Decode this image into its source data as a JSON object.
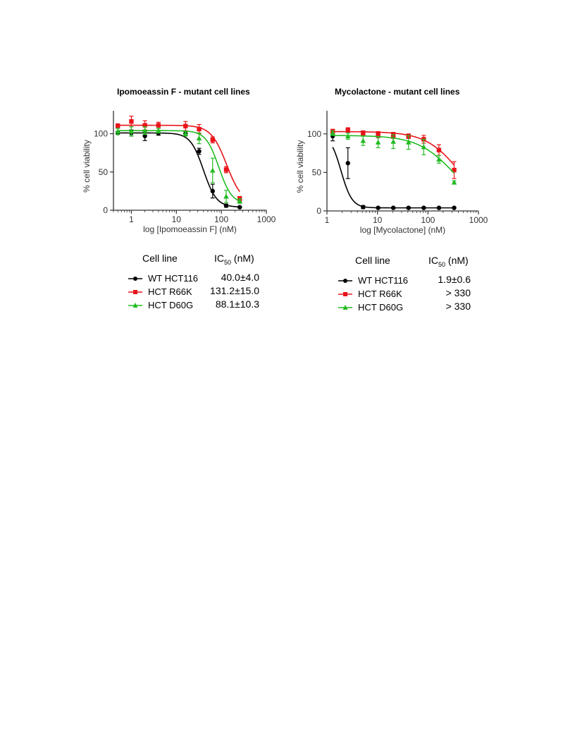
{
  "chart_data": [
    {
      "type": "scatter",
      "title": "Ipomoeassin F - mutant cell lines",
      "xlabel": "log [Ipomoeassin F] (nM)",
      "ylabel": "% cell viability",
      "xscale": "log",
      "xlim": [
        0.4,
        1000
      ],
      "ylim": [
        0,
        130
      ],
      "xticks": [
        1,
        10,
        100,
        1000
      ],
      "xtick_labels": [
        "1",
        "10",
        "100",
        "1000"
      ],
      "yticks": [
        0,
        50,
        100
      ],
      "ytick_labels": [
        "0",
        "50",
        "100"
      ],
      "grid": false,
      "series": [
        {
          "name": "WT HCT116",
          "color": "#000000",
          "marker": "circle",
          "x": [
            0.5,
            1,
            2,
            4,
            16,
            32,
            64,
            128,
            256
          ],
          "y": [
            101,
            101,
            97,
            101,
            100,
            77,
            25,
            6,
            4
          ],
          "err": [
            2,
            4,
            6,
            3,
            3,
            4,
            9,
            2,
            1
          ],
          "fit": {
            "top": 101,
            "bottom": 4,
            "ic50": 40.0,
            "hill": -3.0
          }
        },
        {
          "name": "HCT R66K",
          "color": "#e8141a",
          "marker": "square",
          "x": [
            0.5,
            1,
            2,
            4,
            16,
            32,
            64,
            128,
            256
          ],
          "y": [
            110,
            116,
            111,
            111,
            110,
            106,
            92,
            53,
            15
          ],
          "err": [
            3,
            7,
            6,
            4,
            6,
            6,
            4,
            4,
            3
          ],
          "fit": {
            "top": 111,
            "bottom": 8,
            "ic50": 131.2,
            "hill": -2.5
          }
        },
        {
          "name": "HCT D60G",
          "color": "#22bb22",
          "marker": "triangle",
          "x": [
            0.5,
            1,
            2,
            4,
            16,
            32,
            64,
            128,
            256
          ],
          "y": [
            103,
            103,
            104,
            104,
            100,
            94,
            52,
            18,
            12
          ],
          "err": [
            4,
            6,
            5,
            3,
            3,
            7,
            16,
            8,
            3
          ],
          "fit": {
            "top": 104,
            "bottom": 8,
            "ic50": 88.1,
            "hill": -3.0
          }
        }
      ],
      "legend": {
        "header_name": "Cell line",
        "header_value": "IC",
        "header_value_sub": "50",
        "header_value_unit": " (nM)",
        "rows": [
          {
            "name": "WT HCT116",
            "value": "40.0±4.0"
          },
          {
            "name": "HCT R66K",
            "value": "131.2±15.0"
          },
          {
            "name": "HCT D60G",
            "value": "88.1±10.3"
          }
        ]
      }
    },
    {
      "type": "scatter",
      "title": "Mycolactone - mutant cell lines",
      "xlabel": "log [Mycolactone] (nM)",
      "ylabel": "% cell viability",
      "xscale": "log",
      "xlim": [
        1,
        1000
      ],
      "ylim": [
        0,
        130
      ],
      "xticks": [
        1,
        10,
        100,
        1000
      ],
      "xtick_labels": [
        "1",
        "10",
        "100",
        "1000"
      ],
      "yticks": [
        0,
        50,
        100
      ],
      "ytick_labels": [
        "0",
        "50",
        "100"
      ],
      "grid": false,
      "series": [
        {
          "name": "WT HCT116",
          "color": "#000000",
          "marker": "circle",
          "x": [
            1.3,
            2.6,
            5.2,
            10.3,
            20.6,
            41.2,
            82.5,
            165,
            330
          ],
          "y": [
            97,
            62,
            5,
            4,
            4,
            4,
            4,
            4,
            4
          ],
          "err": [
            6,
            20,
            2,
            1,
            1,
            1,
            1,
            1,
            1
          ],
          "fit": {
            "top": 100,
            "bottom": 4,
            "ic50": 1.9,
            "hill": -4.0
          }
        },
        {
          "name": "HCT R66K",
          "color": "#e8141a",
          "marker": "square",
          "x": [
            1.3,
            2.6,
            5.2,
            10.3,
            20.6,
            41.2,
            82.5,
            165,
            330
          ],
          "y": [
            103,
            105,
            101,
            99,
            98,
            97,
            93,
            79,
            53
          ],
          "err": [
            3,
            3,
            3,
            4,
            4,
            3,
            5,
            7,
            11
          ],
          "fit": {
            "top": 103,
            "bottom": 0,
            "ic50": 420,
            "hill": -1.3
          }
        },
        {
          "name": "HCT D60G",
          "color": "#22bb22",
          "marker": "triangle",
          "x": [
            1.3,
            2.6,
            5.2,
            10.3,
            20.6,
            41.2,
            82.5,
            165,
            330
          ],
          "y": [
            101,
            97,
            91,
            89,
            90,
            89,
            83,
            67,
            37
          ],
          "err": [
            3,
            4,
            6,
            7,
            9,
            9,
            10,
            5,
            2
          ],
          "fit": {
            "top": 98,
            "bottom": 0,
            "ic50": 330,
            "hill": -1.2
          }
        }
      ],
      "legend": {
        "header_name": "Cell line",
        "header_value": "IC",
        "header_value_sub": "50",
        "header_value_unit": " (nM)",
        "rows": [
          {
            "name": "WT HCT116",
            "value": "1.9±0.6"
          },
          {
            "name": "HCT R66K",
            "value": "> 330"
          },
          {
            "name": "HCT D60G",
            "value": "> 330"
          }
        ]
      }
    }
  ]
}
